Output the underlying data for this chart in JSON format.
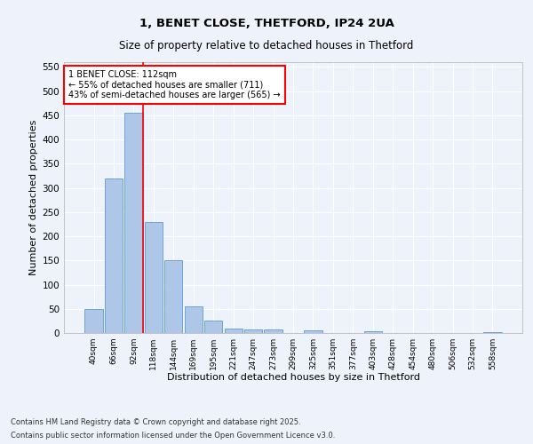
{
  "title1": "1, BENET CLOSE, THETFORD, IP24 2UA",
  "title2": "Size of property relative to detached houses in Thetford",
  "xlabel": "Distribution of detached houses by size in Thetford",
  "ylabel": "Number of detached properties",
  "categories": [
    "40sqm",
    "66sqm",
    "92sqm",
    "118sqm",
    "144sqm",
    "169sqm",
    "195sqm",
    "221sqm",
    "247sqm",
    "273sqm",
    "299sqm",
    "325sqm",
    "351sqm",
    "377sqm",
    "403sqm",
    "428sqm",
    "454sqm",
    "480sqm",
    "506sqm",
    "532sqm",
    "558sqm"
  ],
  "values": [
    50,
    320,
    456,
    230,
    150,
    55,
    25,
    10,
    8,
    7,
    0,
    5,
    0,
    0,
    3,
    0,
    0,
    0,
    0,
    0,
    1
  ],
  "bar_color": "#aec6e8",
  "bar_edge_color": "#5b9bd5",
  "vline_color": "red",
  "annotation_text": "1 BENET CLOSE: 112sqm\n← 55% of detached houses are smaller (711)\n43% of semi-detached houses are larger (565) →",
  "annotation_box_color": "white",
  "annotation_box_edgecolor": "red",
  "ylim": [
    0,
    560
  ],
  "yticks": [
    0,
    50,
    100,
    150,
    200,
    250,
    300,
    350,
    400,
    450,
    500,
    550
  ],
  "bg_color": "#eef2fb",
  "grid_color": "white",
  "vline_pos": 2.45,
  "footer1": "Contains HM Land Registry data © Crown copyright and database right 2025.",
  "footer2": "Contains public sector information licensed under the Open Government Licence v3.0."
}
